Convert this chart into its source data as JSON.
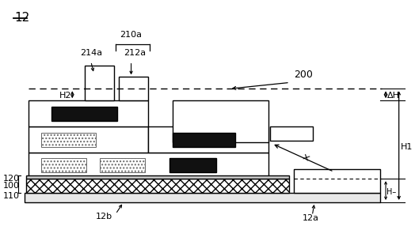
{
  "bg_color": "#ffffff",
  "line_color": "#000000",
  "labels": {
    "main": "12",
    "sub_a": "12a",
    "sub_b": "12b",
    "l100": "100",
    "l110": "110",
    "l120": "120",
    "l200": "200",
    "l210a": "210a",
    "l212a": "212a",
    "l214a": "214a",
    "lH1": "H1",
    "lH2": "H2",
    "ldH": "ΔH",
    "lHm": "H–"
  }
}
